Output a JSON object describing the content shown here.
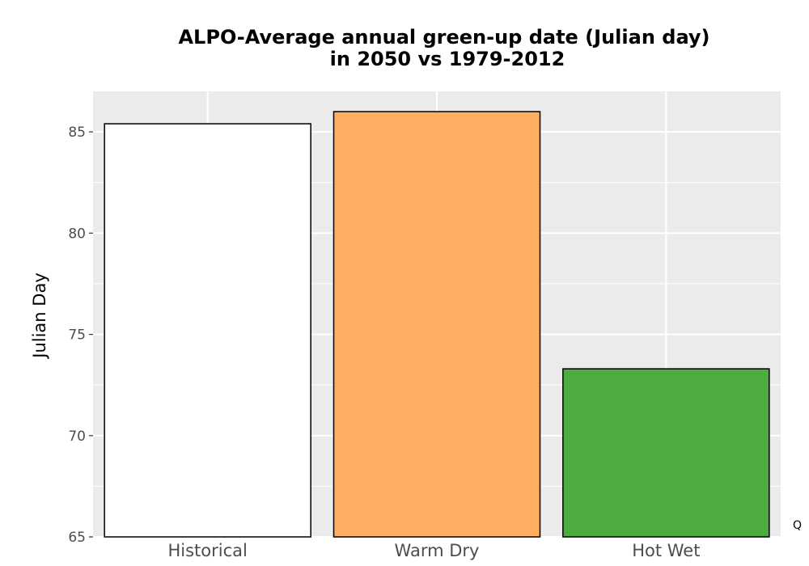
{
  "chart_data": {
    "type": "bar",
    "title": [
      "ALPO-Average annual green-up date (Julian day)",
      "in 2050 vs 1979-2012"
    ],
    "xlabel": "",
    "ylabel": "Julian Day",
    "ylim": [
      65,
      87
    ],
    "yticks": [
      65,
      70,
      75,
      80,
      85
    ],
    "categories": [
      "Historical",
      "Warm Dry",
      "Hot Wet"
    ],
    "values": [
      85.4,
      86.0,
      73.3
    ],
    "bar_colors": [
      "#ffffff",
      "#fdae61",
      "#4dac3f"
    ],
    "bar_outline": "#000000",
    "panel_background": "#ebebeb",
    "grid": true,
    "grid_color": "#ffffff",
    "corner_mark": "Q"
  }
}
